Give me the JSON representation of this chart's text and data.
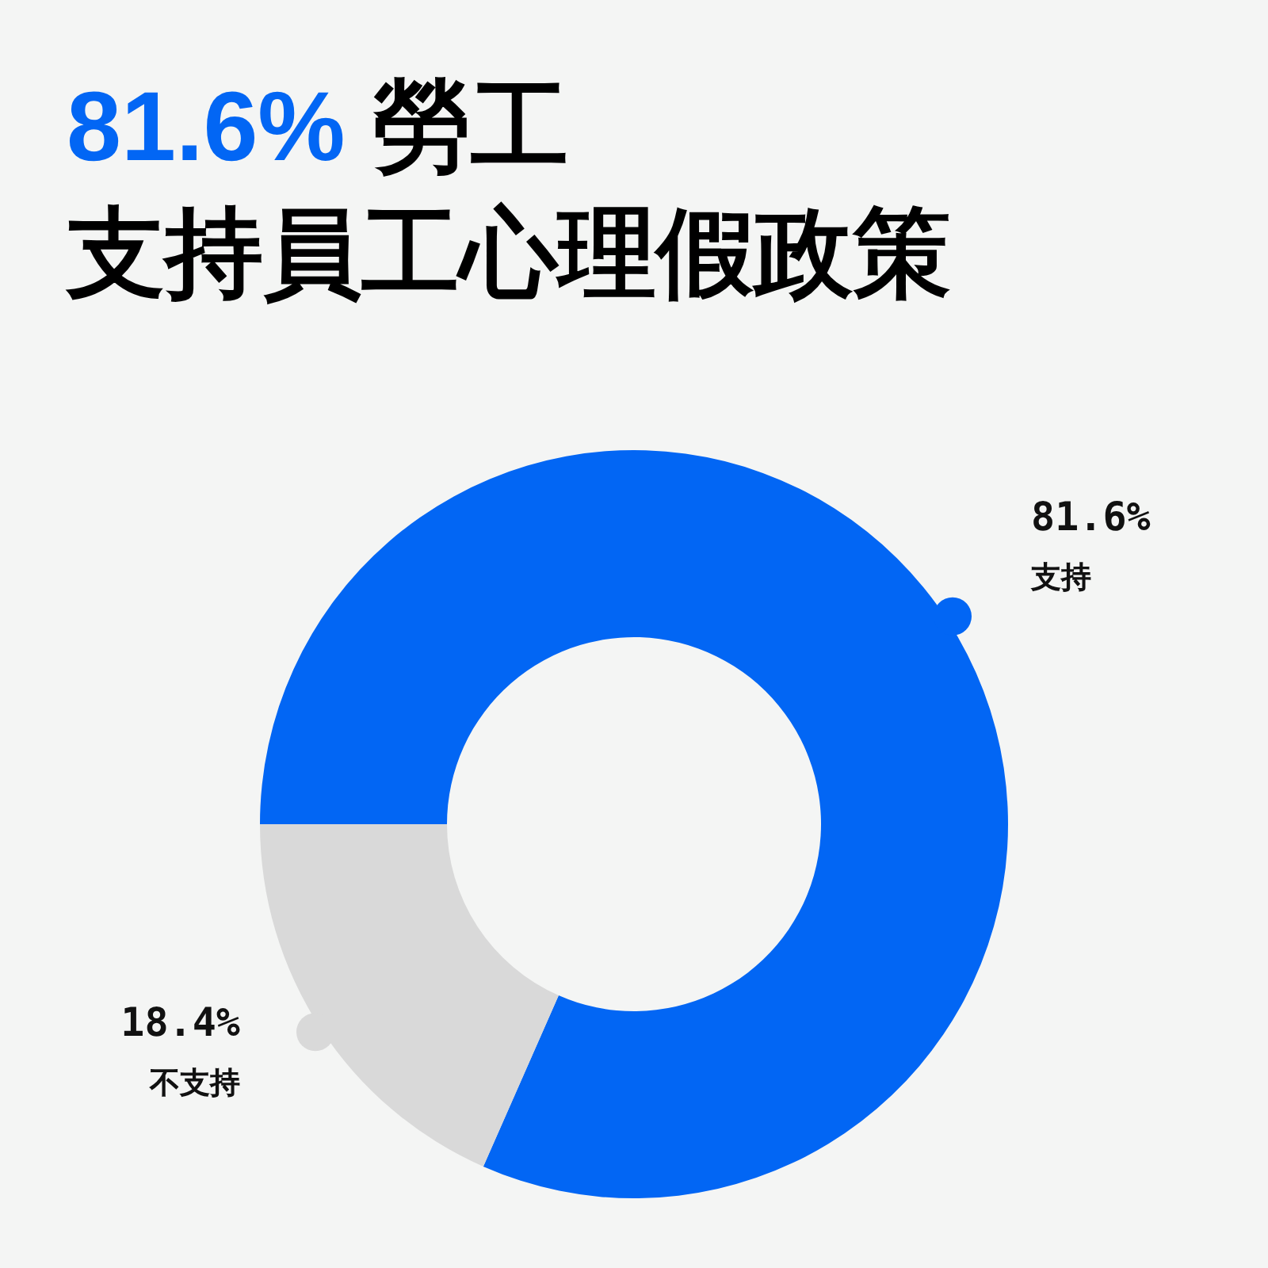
{
  "chart_data": {
    "type": "donut",
    "title": "81.6% 勞工",
    "subtitle": "支持員工心理假政策",
    "categories": [
      "支持",
      "不支持"
    ],
    "values": [
      81.6,
      18.4
    ],
    "colors": [
      "#0266f4",
      "#d9d9d9"
    ],
    "value_labels": [
      "81.6%",
      "18.4%"
    ]
  }
}
